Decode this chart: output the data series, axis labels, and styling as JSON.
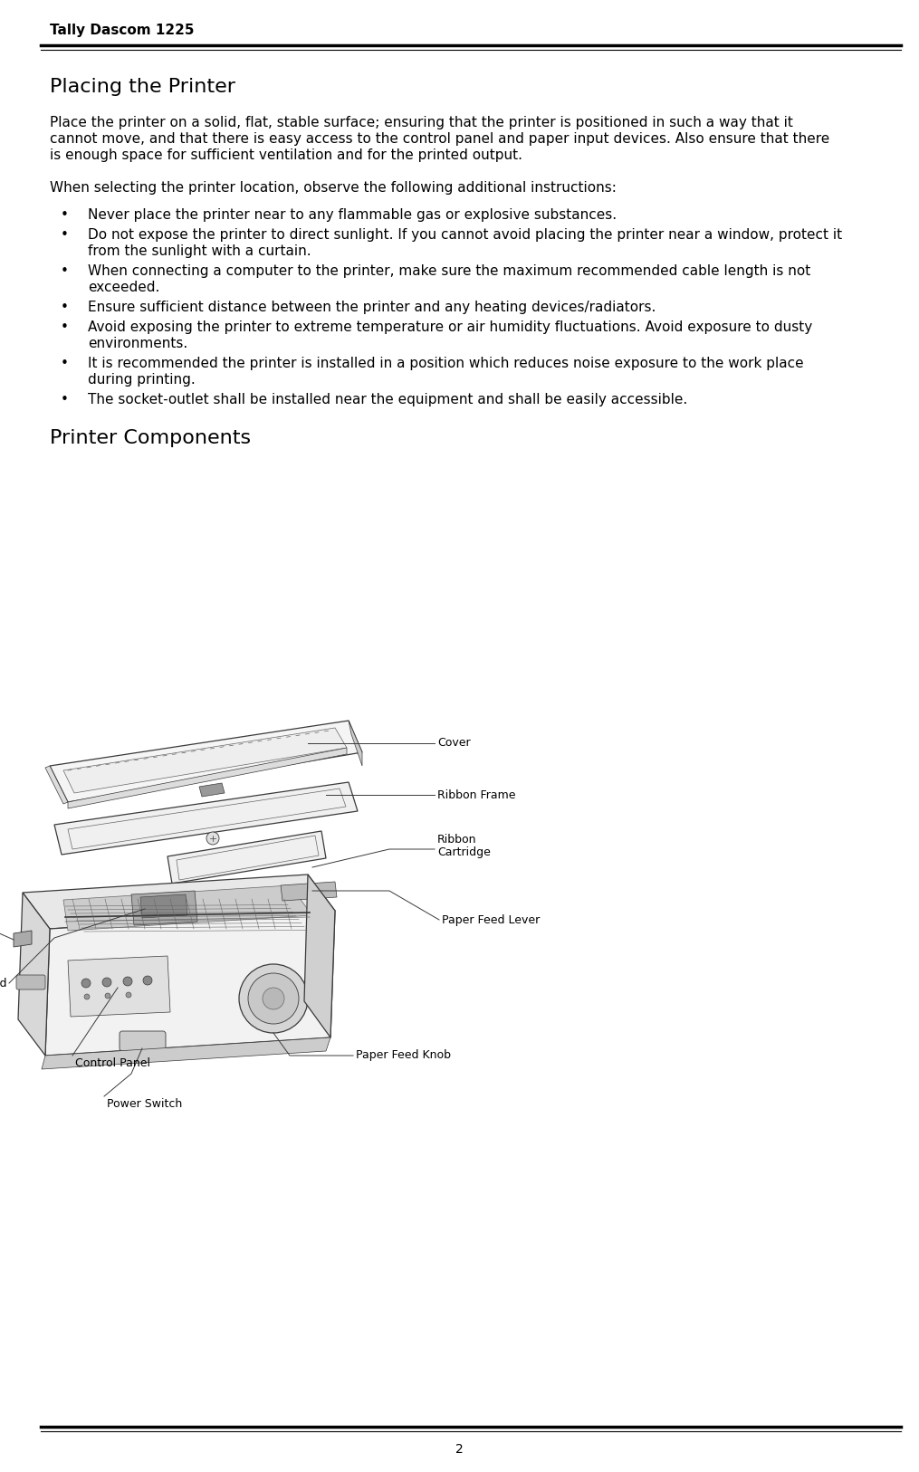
{
  "page_title": "Tally Dascom 1225",
  "section1_title": "Placing the Printer",
  "section1_body_line1": "Place the printer on a solid, flat, stable surface; ensuring that the printer is positioned in such a way that it",
  "section1_body_line2": "cannot move, and that there is easy access to the control panel and paper input devices. Also ensure that there",
  "section1_body_line3": "is enough space for sufficient ventilation and for the printed output.",
  "intro_sentence": "When selecting the printer location, observe the following additional instructions:",
  "bullets": [
    [
      "Never place the printer near to any flammable gas or explosive substances."
    ],
    [
      "Do not expose the printer to direct sunlight. If you cannot avoid placing the printer near a window, protect it",
      "from the sunlight with a curtain."
    ],
    [
      "When connecting a computer to the printer, make sure the maximum recommended cable length is not",
      "exceeded."
    ],
    [
      "Ensure sufficient distance between the printer and any heating devices/radiators."
    ],
    [
      "Avoid exposing the printer to extreme temperature or air humidity fluctuations. Avoid exposure to dusty",
      "environments."
    ],
    [
      "It is recommended the printer is installed in a position which reduces noise exposure to the work place",
      "during printing."
    ],
    [
      "The socket-outlet shall be installed near the equipment and shall be easily accessible."
    ]
  ],
  "section2_title": "Printer Components",
  "page_number": "2",
  "bg_color": "#ffffff",
  "text_color": "#000000",
  "header_fontsize": 11,
  "heading1_fontsize": 16,
  "body_fontsize": 11,
  "bullet_fontsize": 11,
  "heading2_fontsize": 16,
  "anno_fontsize": 9
}
